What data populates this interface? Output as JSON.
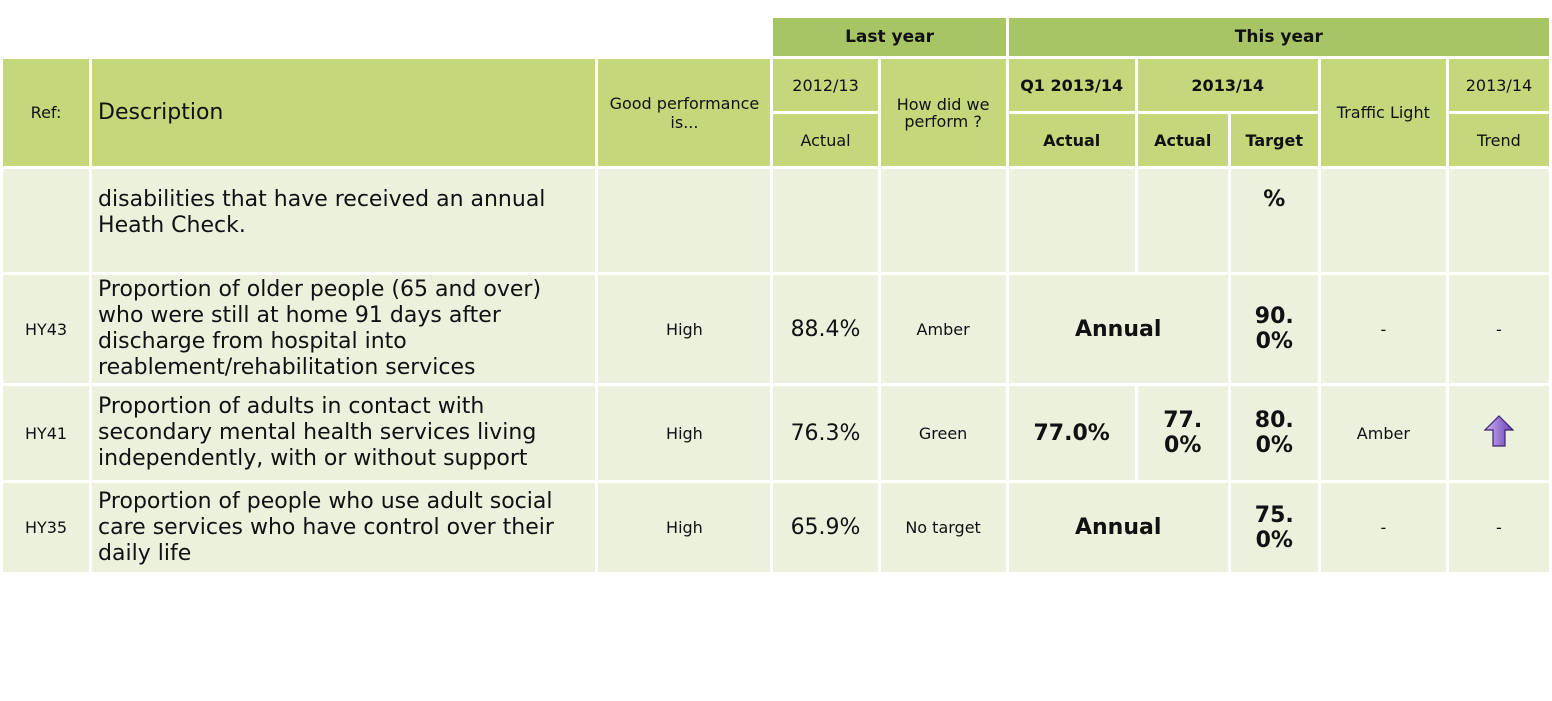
{
  "header": {
    "groups": {
      "last_year": "Last year",
      "this_year": "This year"
    },
    "ref": "Ref:",
    "description": "Description",
    "good": "Good performance is...",
    "last_period": "2012/13",
    "last_actual": "Actual",
    "how": "How did we perform ?",
    "q1": "Q1 2013/14",
    "this_period": "2013/14",
    "q1_actual": "Actual",
    "actual": "Actual",
    "target": "Target",
    "traffic": "Traffic Light",
    "trend_period": "2013/14",
    "trend": "Trend"
  },
  "rows": [
    {
      "description": "disabilities that have received an annual Heath Check.",
      "target": "%"
    },
    {
      "ref": "HY43",
      "description": "Proportion of older people (65 and over) who were still at home 91 days after discharge from hospital into reablement/rehabilitation services",
      "good": "High",
      "last_actual": "88.4%",
      "how": "Amber",
      "annual": "Annual",
      "target": "90.0%",
      "traffic": "-",
      "trend": "-"
    },
    {
      "ref": "HY41",
      "description": "Proportion of adults in contact with secondary mental health services living independently, with or without support",
      "good": "High",
      "last_actual": "76.3%",
      "how": "Green",
      "q1_actual": "77.0%",
      "actual": "77.0%",
      "target": "80.0%",
      "traffic": "Amber"
    },
    {
      "ref": "HY35",
      "description": "Proportion of people who use adult social care services who have control over their daily life",
      "good": "High",
      "last_actual": "65.9%",
      "how": "No target",
      "annual": "Annual",
      "target": "75.0%",
      "traffic": "-",
      "trend": "-"
    }
  ]
}
